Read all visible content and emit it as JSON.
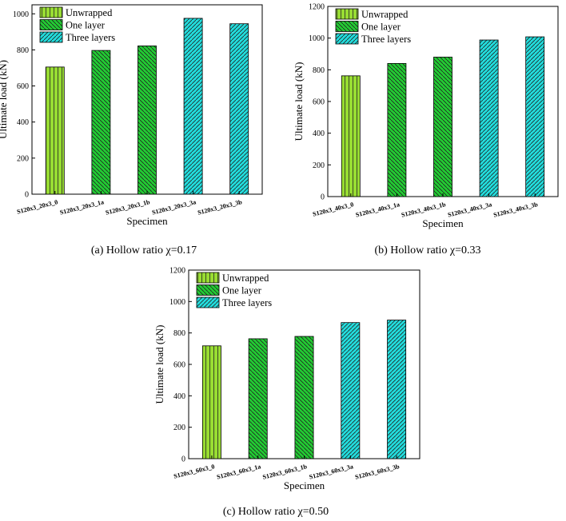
{
  "colors": {
    "unwrapped": "#99dd33",
    "one_layer": "#22cc33",
    "three_layers": "#22dddd",
    "axis": "#000000"
  },
  "legend": [
    "Unwrapped",
    "One layer",
    "Three layers"
  ],
  "captions": [
    "(a) Hollow ratio χ=0.17",
    "(b) Hollow ratio χ=0.33",
    "(c) Hollow ratio χ=0.50"
  ],
  "chart_data": [
    {
      "type": "bar",
      "title": "(a) Hollow ratio χ=0.17",
      "xlabel": "Specimen",
      "ylabel": "Ultimate load (kN)",
      "categories": [
        "S120x3_20x3_0",
        "S120x3_20x3_1a",
        "S120x3_20x3_1b",
        "S120x3_20x3_3a",
        "S120x3_20x3_3b"
      ],
      "groups": [
        "Unwrapped",
        "One layer",
        "One layer",
        "Three layers",
        "Three layers"
      ],
      "values": [
        705,
        797,
        822,
        975,
        945
      ],
      "ylim": [
        0,
        1050
      ],
      "yticks": [
        0,
        200,
        400,
        600,
        800,
        1000
      ],
      "legend_position": "top-left"
    },
    {
      "type": "bar",
      "title": "(b) Hollow ratio χ=0.33",
      "xlabel": "Specimen",
      "ylabel": "Ultimate load (kN)",
      "categories": [
        "S120x3_40x3_0",
        "S120x3_40x3_1a",
        "S120x3_40x3_1b",
        "S120x3_40x3_3a",
        "S120x3_40x3_3b"
      ],
      "groups": [
        "Unwrapped",
        "One layer",
        "One layer",
        "Three layers",
        "Three layers"
      ],
      "values": [
        762,
        840,
        880,
        988,
        1008
      ],
      "ylim": [
        0,
        1200
      ],
      "yticks": [
        0,
        200,
        400,
        600,
        800,
        1000,
        1200
      ],
      "legend_position": "top-left"
    },
    {
      "type": "bar",
      "title": "(c) Hollow ratio χ=0.50",
      "xlabel": "Specimen",
      "ylabel": "Ultimate load (kN)",
      "categories": [
        "S120x3_60x3_0",
        "S120x3_60x3_1a",
        "S120x3_60x3_1b",
        "S120x3_60x3_3a",
        "S120x3_60x3_3b"
      ],
      "groups": [
        "Unwrapped",
        "One layer",
        "One layer",
        "Three layers",
        "Three layers"
      ],
      "values": [
        718,
        763,
        778,
        866,
        882
      ],
      "ylim": [
        0,
        1200
      ],
      "yticks": [
        0,
        200,
        400,
        600,
        800,
        1000,
        1200
      ],
      "legend_position": "top-left"
    }
  ]
}
